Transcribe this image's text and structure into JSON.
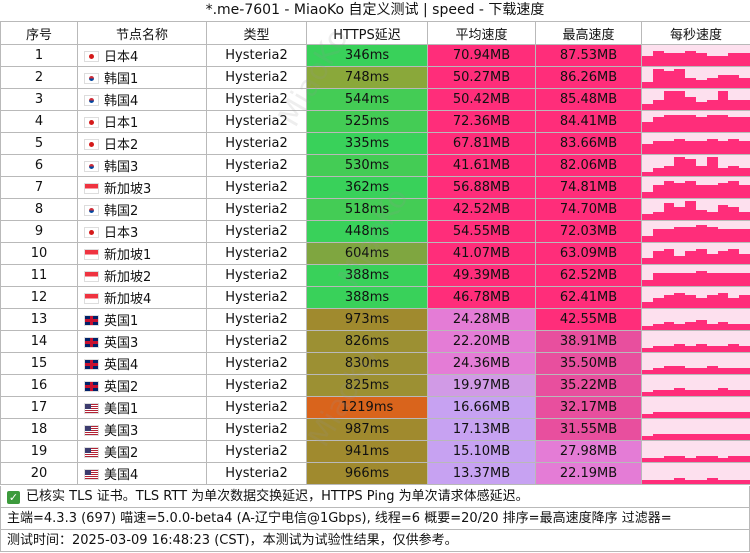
{
  "title": "*.me-7601 - MiaoKo 自定义测试 | speed - 下载速度",
  "headers": [
    "序号",
    "节点名称",
    "类型",
    "HTTPS延迟",
    "平均速度",
    "最高速度",
    "每秒速度"
  ],
  "rows": [
    {
      "idx": "1",
      "flag": "jp",
      "name": "日本4",
      "type": "Hysteria2",
      "latency": "346ms",
      "lat_color": "#39d15a",
      "avg": "70.94MB",
      "avg_color": "#ff2d7a",
      "max": "87.53MB",
      "max_color": "#ff2d7a",
      "spark": [
        0.5,
        0.7,
        0.6,
        0.6,
        0.7,
        0.6,
        0.5,
        0.5,
        0.6,
        0.6
      ]
    },
    {
      "idx": "2",
      "flag": "kr",
      "name": "韩国1",
      "type": "Hysteria2",
      "latency": "748ms",
      "lat_color": "#8aa83a",
      "avg": "50.27MB",
      "avg_color": "#ff2d7a",
      "max": "86.26MB",
      "max_color": "#ff2d7a",
      "spark": [
        0.3,
        0.9,
        0.8,
        0.9,
        0.5,
        0.4,
        0.5,
        0.6,
        0.6,
        0.5
      ]
    },
    {
      "idx": "3",
      "flag": "kr",
      "name": "韩国4",
      "type": "Hysteria2",
      "latency": "544ms",
      "lat_color": "#44cc55",
      "avg": "50.42MB",
      "avg_color": "#ff2d7a",
      "max": "85.48MB",
      "max_color": "#ff2d7a",
      "spark": [
        0.3,
        0.5,
        0.9,
        0.9,
        0.6,
        0.4,
        0.5,
        0.9,
        0.5,
        0.5
      ]
    },
    {
      "idx": "4",
      "flag": "jp",
      "name": "日本1",
      "type": "Hysteria2",
      "latency": "525ms",
      "lat_color": "#44cc55",
      "avg": "72.36MB",
      "avg_color": "#ff2d7a",
      "max": "84.41MB",
      "max_color": "#ff2d7a",
      "spark": [
        0.5,
        0.7,
        0.8,
        0.8,
        0.8,
        0.7,
        0.8,
        0.8,
        0.7,
        0.7
      ]
    },
    {
      "idx": "5",
      "flag": "jp",
      "name": "日本2",
      "type": "Hysteria2",
      "latency": "335ms",
      "lat_color": "#39d15a",
      "avg": "67.81MB",
      "avg_color": "#ff2d7a",
      "max": "83.66MB",
      "max_color": "#ff2d7a",
      "spark": [
        0.5,
        0.6,
        0.6,
        0.7,
        0.6,
        0.6,
        0.7,
        0.6,
        0.7,
        0.6
      ]
    },
    {
      "idx": "6",
      "flag": "kr",
      "name": "韩国3",
      "type": "Hysteria2",
      "latency": "530ms",
      "lat_color": "#44cc55",
      "avg": "41.61MB",
      "avg_color": "#ff2d7a",
      "max": "82.06MB",
      "max_color": "#ff2d7a",
      "spark": [
        0.2,
        0.4,
        0.5,
        0.9,
        0.8,
        0.5,
        0.9,
        0.4,
        0.5,
        0.4
      ]
    },
    {
      "idx": "7",
      "flag": "sg",
      "name": "新加坡3",
      "type": "Hysteria2",
      "latency": "362ms",
      "lat_color": "#39d15a",
      "avg": "56.88MB",
      "avg_color": "#ff2d7a",
      "max": "74.81MB",
      "max_color": "#ff2d7a",
      "spark": [
        0.3,
        0.6,
        0.8,
        0.7,
        0.8,
        0.6,
        0.6,
        0.7,
        0.8,
        0.6
      ]
    },
    {
      "idx": "8",
      "flag": "kr",
      "name": "韩国2",
      "type": "Hysteria2",
      "latency": "518ms",
      "lat_color": "#44cc55",
      "avg": "42.52MB",
      "avg_color": "#ff2d7a",
      "max": "74.70MB",
      "max_color": "#ff2d7a",
      "spark": [
        0.3,
        0.4,
        0.8,
        0.6,
        0.9,
        0.5,
        0.4,
        0.7,
        0.6,
        0.4
      ]
    },
    {
      "idx": "9",
      "flag": "jp",
      "name": "日本3",
      "type": "Hysteria2",
      "latency": "448ms",
      "lat_color": "#39d15a",
      "avg": "54.55MB",
      "avg_color": "#ff2d7a",
      "max": "72.03MB",
      "max_color": "#ff2d7a",
      "spark": [
        0.3,
        0.6,
        0.6,
        0.7,
        0.7,
        0.8,
        0.7,
        0.6,
        0.6,
        0.6
      ]
    },
    {
      "idx": "10",
      "flag": "sg",
      "name": "新加坡1",
      "type": "Hysteria2",
      "latency": "604ms",
      "lat_color": "#7fa640",
      "avg": "41.07MB",
      "avg_color": "#ff2d7a",
      "max": "63.09MB",
      "max_color": "#ff2d7a",
      "spark": [
        0.3,
        0.6,
        0.7,
        0.4,
        0.6,
        0.7,
        0.5,
        0.6,
        0.7,
        0.5
      ]
    },
    {
      "idx": "11",
      "flag": "sg",
      "name": "新加坡2",
      "type": "Hysteria2",
      "latency": "388ms",
      "lat_color": "#39d15a",
      "avg": "49.39MB",
      "avg_color": "#ff2d7a",
      "max": "62.52MB",
      "max_color": "#ff2d7a",
      "spark": [
        0.3,
        0.6,
        0.6,
        0.6,
        0.6,
        0.7,
        0.6,
        0.6,
        0.6,
        0.6
      ]
    },
    {
      "idx": "12",
      "flag": "sg",
      "name": "新加坡4",
      "type": "Hysteria2",
      "latency": "388ms",
      "lat_color": "#39d15a",
      "avg": "46.78MB",
      "avg_color": "#ff2d7a",
      "max": "62.41MB",
      "max_color": "#ff2d7a",
      "spark": [
        0.3,
        0.5,
        0.6,
        0.7,
        0.6,
        0.5,
        0.6,
        0.7,
        0.5,
        0.6
      ]
    },
    {
      "idx": "13",
      "flag": "gb",
      "name": "英国1",
      "type": "Hysteria2",
      "latency": "973ms",
      "lat_color": "#a08a2e",
      "avg": "24.28MB",
      "avg_color": "#e47cd6",
      "max": "42.55MB",
      "max_color": "#ff2d7a",
      "spark": [
        0.2,
        0.3,
        0.4,
        0.3,
        0.4,
        0.5,
        0.3,
        0.4,
        0.3,
        0.3
      ]
    },
    {
      "idx": "14",
      "flag": "gb",
      "name": "英国3",
      "type": "Hysteria2",
      "latency": "826ms",
      "lat_color": "#9c9033",
      "avg": "22.20MB",
      "avg_color": "#e47cd6",
      "max": "38.91MB",
      "max_color": "#e84f9e",
      "spark": [
        0.2,
        0.3,
        0.3,
        0.4,
        0.3,
        0.4,
        0.3,
        0.3,
        0.4,
        0.3
      ]
    },
    {
      "idx": "15",
      "flag": "gb",
      "name": "英国4",
      "type": "Hysteria2",
      "latency": "830ms",
      "lat_color": "#9c9033",
      "avg": "24.36MB",
      "avg_color": "#e47cd6",
      "max": "35.50MB",
      "max_color": "#e84f9e",
      "spark": [
        0.2,
        0.3,
        0.4,
        0.4,
        0.3,
        0.3,
        0.4,
        0.3,
        0.3,
        0.3
      ]
    },
    {
      "idx": "16",
      "flag": "gb",
      "name": "英国2",
      "type": "Hysteria2",
      "latency": "825ms",
      "lat_color": "#9c9033",
      "avg": "19.97MB",
      "avg_color": "#d19ae6",
      "max": "35.22MB",
      "max_color": "#e84f9e",
      "spark": [
        0.2,
        0.3,
        0.3,
        0.4,
        0.3,
        0.3,
        0.3,
        0.4,
        0.3,
        0.3
      ]
    },
    {
      "idx": "17",
      "flag": "us",
      "name": "美国1",
      "type": "Hysteria2",
      "latency": "1219ms",
      "lat_color": "#d9641c",
      "avg": "16.66MB",
      "avg_color": "#c7a2f2",
      "max": "32.17MB",
      "max_color": "#e84f9e",
      "spark": [
        0.2,
        0.3,
        0.3,
        0.3,
        0.3,
        0.3,
        0.3,
        0.3,
        0.3,
        0.3
      ]
    },
    {
      "idx": "18",
      "flag": "us",
      "name": "美国3",
      "type": "Hysteria2",
      "latency": "987ms",
      "lat_color": "#a08a2e",
      "avg": "17.13MB",
      "avg_color": "#c7a2f2",
      "max": "31.55MB",
      "max_color": "#e84f9e",
      "spark": [
        0.2,
        0.3,
        0.3,
        0.3,
        0.3,
        0.3,
        0.3,
        0.3,
        0.3,
        0.3
      ]
    },
    {
      "idx": "19",
      "flag": "us",
      "name": "美国2",
      "type": "Hysteria2",
      "latency": "941ms",
      "lat_color": "#a08a2e",
      "avg": "15.10MB",
      "avg_color": "#c7a2f2",
      "max": "27.98MB",
      "max_color": "#e47cd6",
      "spark": [
        0.2,
        0.2,
        0.3,
        0.3,
        0.2,
        0.3,
        0.3,
        0.2,
        0.3,
        0.3
      ]
    },
    {
      "idx": "20",
      "flag": "us",
      "name": "美国4",
      "type": "Hysteria2",
      "latency": "966ms",
      "lat_color": "#a08a2e",
      "avg": "13.37MB",
      "avg_color": "#c7a2f2",
      "max": "22.19MB",
      "max_color": "#e47cd6",
      "spark": [
        0.2,
        0.2,
        0.2,
        0.3,
        0.2,
        0.2,
        0.3,
        0.2,
        0.2,
        0.2
      ]
    }
  ],
  "spark_color": "#ff2d7a",
  "spark_bg": "#fde0ee",
  "footer": {
    "line1": "已核实 TLS 证书。TLS RTT 为单次数据交换延迟，HTTPS Ping 为单次请求体感延迟。",
    "line2": "主端=4.3.3 (697) 喵速=5.0.0-beta4 (A-辽宁电信@1Gbps), 线程=6 概要=20/20 排序=最高速度降序 过滤器=",
    "line3": "测试时间：2025-03-09 16:48:23 (CST)，本测试为试验性结果，仅供参考。"
  },
  "watermark": "MiaoKo"
}
